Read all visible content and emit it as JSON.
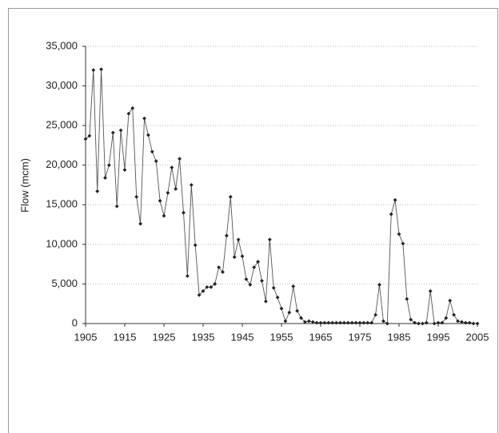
{
  "chart_data": {
    "type": "line",
    "y_label": "Flow (mcm)",
    "x": [
      1905,
      1906,
      1907,
      1908,
      1909,
      1910,
      1911,
      1912,
      1913,
      1914,
      1915,
      1916,
      1917,
      1918,
      1919,
      1920,
      1921,
      1922,
      1923,
      1924,
      1925,
      1926,
      1927,
      1928,
      1929,
      1930,
      1931,
      1932,
      1933,
      1934,
      1935,
      1936,
      1937,
      1938,
      1939,
      1940,
      1941,
      1942,
      1943,
      1944,
      1945,
      1946,
      1947,
      1948,
      1949,
      1950,
      1951,
      1952,
      1953,
      1954,
      1955,
      1956,
      1957,
      1958,
      1959,
      1960,
      1961,
      1962,
      1963,
      1964,
      1965,
      1966,
      1967,
      1968,
      1969,
      1970,
      1971,
      1972,
      1973,
      1974,
      1975,
      1976,
      1977,
      1978,
      1979,
      1980,
      1981,
      1982,
      1983,
      1984,
      1985,
      1986,
      1987,
      1988,
      1989,
      1990,
      1991,
      1992,
      1993,
      1994,
      1995,
      1996,
      1997,
      1998,
      1999,
      2000,
      2001,
      2002,
      2003,
      2004,
      2005
    ],
    "values": [
      23300,
      23700,
      32000,
      16700,
      32100,
      18400,
      20000,
      24100,
      14800,
      24400,
      19400,
      26500,
      27200,
      16000,
      12600,
      25900,
      23800,
      21700,
      20500,
      15500,
      13600,
      16500,
      19700,
      17000,
      20800,
      14000,
      6000,
      17500,
      9900,
      3600,
      4100,
      4600,
      4600,
      5000,
      7100,
      6500,
      11100,
      16000,
      8400,
      10600,
      8500,
      5600,
      4900,
      7100,
      7800,
      5400,
      2800,
      10600,
      4500,
      3300,
      1900,
      300,
      1400,
      4700,
      1600,
      700,
      200,
      300,
      200,
      100,
      100,
      100,
      100,
      100,
      100,
      100,
      100,
      100,
      100,
      100,
      100,
      100,
      100,
      100,
      1100,
      4900,
      300,
      0,
      13800,
      15600,
      11300,
      10100,
      3100,
      500,
      100,
      0,
      0,
      100,
      4100,
      0,
      100,
      100,
      700,
      2900,
      1100,
      300,
      200,
      100,
      100,
      0,
      0
    ],
    "color": "#222222",
    "xlim": [
      1905,
      2005
    ],
    "xticks": [
      1905,
      1915,
      1925,
      1935,
      1945,
      1955,
      1965,
      1975,
      1985,
      1995,
      2005
    ],
    "ylim": [
      0,
      35000
    ],
    "yticks": [
      0,
      {
        "value": 5000,
        "label": "5,000"
      },
      {
        "value": 10000,
        "label": "10,000"
      },
      {
        "value": 15000,
        "label": "15,000"
      },
      {
        "value": 20000,
        "label": "20,000"
      },
      {
        "value": 25000,
        "label": "25,000"
      },
      {
        "value": 30000,
        "label": "30,000"
      },
      {
        "value": 35000,
        "label": "35,000"
      }
    ],
    "grid": true
  }
}
